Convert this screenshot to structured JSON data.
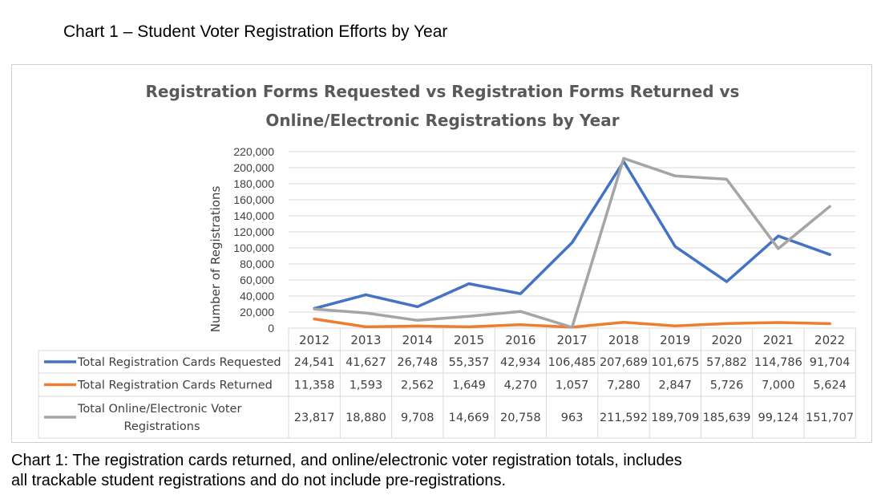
{
  "captions": {
    "top": "Chart 1 – Student Voter Registration Efforts by Year",
    "bottom_line1": "Chart 1: The registration cards returned, and online/electronic voter registration totals, includes",
    "bottom_line2": "all trackable student registrations and do not include pre-registrations."
  },
  "chart_data": {
    "type": "line",
    "title_line1": "Registration Forms Requested vs Registration Forms Returned vs",
    "title_line2": "Online/Electronic Registrations by Year",
    "ylabel": "Number of Registrations",
    "ylim": [
      0,
      220000
    ],
    "yticks": [
      "0",
      "20,000",
      "40,000",
      "60,000",
      "80,000",
      "100,000",
      "120,000",
      "140,000",
      "160,000",
      "180,000",
      "200,000",
      "220,000"
    ],
    "grid": true,
    "legend": "data-table",
    "categories": [
      "2012",
      "2013",
      "2014",
      "2015",
      "2016",
      "2017",
      "2018",
      "2019",
      "2020",
      "2021",
      "2022"
    ],
    "series": [
      {
        "name": "Total Registration Cards Requested",
        "color": "#4472C4",
        "values": [
          24541,
          41627,
          26748,
          55357,
          42934,
          106485,
          207689,
          101675,
          57882,
          114786,
          91704
        ],
        "labels": [
          "24,541",
          "41,627",
          "26,748",
          "55,357",
          "42,934",
          "106,485",
          "207,689",
          "101,675",
          "57,882",
          "114,786",
          "91,704"
        ]
      },
      {
        "name": "Total Registration Cards Returned",
        "color": "#ED7D31",
        "values": [
          11358,
          1593,
          2562,
          1649,
          4270,
          1057,
          7280,
          2847,
          5726,
          7000,
          5624
        ],
        "labels": [
          "11,358",
          "1,593",
          "2,562",
          "1,649",
          "4,270",
          "1,057",
          "7,280",
          "2,847",
          "5,726",
          "7,000",
          "5,624"
        ]
      },
      {
        "name": "Total Online/Electronic Voter Registrations",
        "name_line1": "Total Online/Electronic Voter",
        "name_line2": "Registrations",
        "color": "#A5A5A5",
        "values": [
          23817,
          18880,
          9708,
          14669,
          20758,
          963,
          211592,
          189709,
          185639,
          99124,
          151707
        ],
        "labels": [
          "23,817",
          "18,880",
          "9,708",
          "14,669",
          "20,758",
          "963",
          "211,592",
          "189,709",
          "185,639",
          "99,124",
          "151,707"
        ]
      }
    ]
  }
}
